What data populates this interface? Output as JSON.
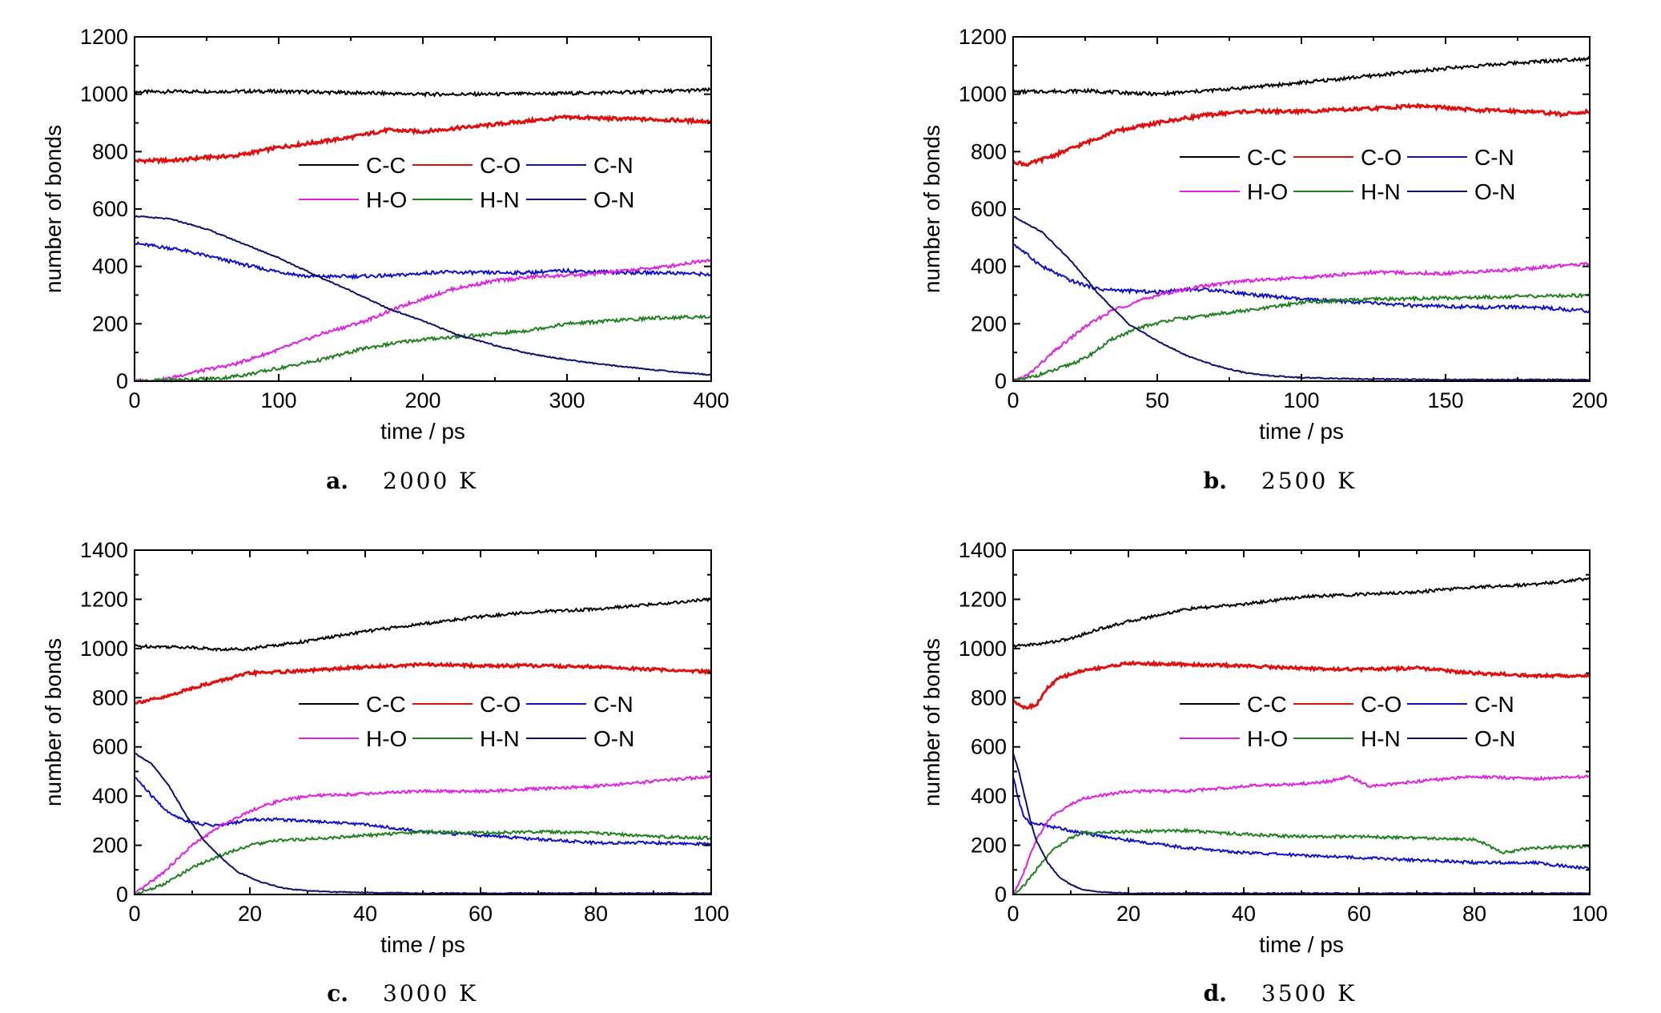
{
  "figure": {
    "panels": [
      {
        "letter": "a.",
        "temperature": "2000 K"
      },
      {
        "letter": "b.",
        "temperature": "2500 K"
      },
      {
        "letter": "c.",
        "temperature": "3000 K"
      },
      {
        "letter": "d.",
        "temperature": "3500 K"
      }
    ]
  },
  "chart_data": [
    {
      "type": "line",
      "xlabel": "time / ps",
      "ylabel": "number of bonds",
      "xlim": [
        0,
        400
      ],
      "ylim": [
        0,
        1200
      ],
      "xticks": [
        0,
        100,
        200,
        300,
        400
      ],
      "yticks": [
        0,
        200,
        400,
        600,
        800,
        1000,
        1200
      ],
      "legend": "center-right",
      "series": [
        {
          "name": "C-C",
          "color": "#000000",
          "x": [
            0,
            50,
            100,
            150,
            200,
            250,
            300,
            350,
            400
          ],
          "values": [
            1008,
            1010,
            1010,
            1005,
            1000,
            1000,
            1003,
            1008,
            1015
          ]
        },
        {
          "name": "C-O",
          "color": "#e01010",
          "x": [
            0,
            30,
            50,
            70,
            100,
            130,
            150,
            175,
            200,
            230,
            260,
            300,
            330,
            360,
            400
          ],
          "values": [
            768,
            770,
            780,
            785,
            815,
            835,
            850,
            875,
            870,
            885,
            900,
            920,
            915,
            912,
            905
          ]
        },
        {
          "name": "C-N",
          "color": "#1010cc",
          "x": [
            0,
            30,
            60,
            90,
            120,
            150,
            180,
            210,
            240,
            270,
            300,
            340,
            370,
            400
          ],
          "values": [
            480,
            460,
            425,
            390,
            365,
            365,
            368,
            380,
            378,
            378,
            385,
            378,
            378,
            372
          ]
        },
        {
          "name": "H-O",
          "color": "#e020e0",
          "x": [
            0,
            20,
            40,
            70,
            100,
            130,
            160,
            190,
            220,
            250,
            280,
            310,
            340,
            370,
            400
          ],
          "values": [
            0,
            5,
            30,
            60,
            110,
            165,
            210,
            270,
            320,
            350,
            365,
            370,
            385,
            400,
            425
          ]
        },
        {
          "name": "H-N",
          "color": "#208020",
          "x": [
            0,
            30,
            60,
            80,
            100,
            130,
            160,
            190,
            210,
            240,
            270,
            300,
            330,
            360,
            400
          ],
          "values": [
            0,
            5,
            10,
            25,
            45,
            75,
            115,
            140,
            150,
            160,
            175,
            200,
            210,
            220,
            225
          ]
        },
        {
          "name": "O-N",
          "color": "#10106a",
          "x": [
            0,
            25,
            50,
            75,
            100,
            125,
            150,
            175,
            200,
            225,
            250,
            275,
            300,
            325,
            350,
            375,
            400
          ],
          "values": [
            575,
            565,
            530,
            480,
            430,
            370,
            315,
            255,
            210,
            160,
            125,
            95,
            75,
            58,
            45,
            32,
            22
          ]
        }
      ]
    },
    {
      "type": "line",
      "xlabel": "time / ps",
      "ylabel": "number of bonds",
      "xlim": [
        0,
        200
      ],
      "ylim": [
        0,
        1200
      ],
      "xticks": [
        0,
        50,
        100,
        150,
        200
      ],
      "yticks": [
        0,
        200,
        400,
        600,
        800,
        1000,
        1200
      ],
      "legend": "center-right",
      "series": [
        {
          "name": "C-C",
          "color": "#000000",
          "x": [
            0,
            25,
            50,
            75,
            100,
            125,
            150,
            175,
            200
          ],
          "values": [
            1008,
            1012,
            1000,
            1018,
            1040,
            1065,
            1090,
            1110,
            1125
          ]
        },
        {
          "name": "C-O",
          "color": "#e01010",
          "x": [
            0,
            5,
            15,
            25,
            35,
            50,
            65,
            80,
            100,
            125,
            140,
            160,
            180,
            190,
            200
          ],
          "values": [
            765,
            755,
            790,
            830,
            870,
            900,
            925,
            940,
            940,
            950,
            960,
            945,
            940,
            930,
            940
          ]
        },
        {
          "name": "C-N",
          "color": "#1010cc",
          "x": [
            0,
            10,
            20,
            30,
            40,
            50,
            60,
            70,
            80,
            100,
            120,
            140,
            160,
            180,
            200
          ],
          "values": [
            480,
            400,
            350,
            320,
            315,
            310,
            320,
            318,
            305,
            285,
            275,
            262,
            258,
            258,
            245
          ]
        },
        {
          "name": "H-O",
          "color": "#e020e0",
          "x": [
            0,
            5,
            15,
            25,
            35,
            50,
            65,
            80,
            100,
            125,
            150,
            175,
            200
          ],
          "values": [
            0,
            20,
            110,
            190,
            250,
            300,
            330,
            350,
            360,
            380,
            375,
            390,
            410
          ]
        },
        {
          "name": "H-N",
          "color": "#208020",
          "x": [
            0,
            5,
            15,
            25,
            35,
            45,
            55,
            65,
            75,
            85,
            100,
            125,
            150,
            175,
            200
          ],
          "values": [
            0,
            10,
            40,
            80,
            150,
            190,
            215,
            225,
            240,
            250,
            275,
            285,
            290,
            295,
            300
          ]
        },
        {
          "name": "O-N",
          "color": "#10106a",
          "x": [
            0,
            10,
            20,
            30,
            40,
            50,
            60,
            70,
            80,
            90,
            100,
            120,
            150,
            175,
            200
          ],
          "values": [
            575,
            520,
            420,
            300,
            200,
            140,
            90,
            55,
            30,
            18,
            12,
            8,
            5,
            5,
            5
          ]
        }
      ]
    },
    {
      "type": "line",
      "xlabel": "time / ps",
      "ylabel": "number of bonds",
      "xlim": [
        0,
        100
      ],
      "ylim": [
        0,
        1400
      ],
      "xticks": [
        0,
        20,
        40,
        60,
        80,
        100
      ],
      "yticks": [
        0,
        200,
        400,
        600,
        800,
        1000,
        1200,
        1400
      ],
      "legend": "center-right",
      "series": [
        {
          "name": "C-C",
          "color": "#000000",
          "x": [
            0,
            10,
            15,
            20,
            30,
            40,
            50,
            60,
            70,
            80,
            90,
            100
          ],
          "values": [
            1010,
            1005,
            995,
            1000,
            1030,
            1070,
            1100,
            1130,
            1150,
            1160,
            1180,
            1200
          ]
        },
        {
          "name": "C-O",
          "color": "#e01010",
          "x": [
            0,
            5,
            10,
            15,
            20,
            25,
            30,
            40,
            50,
            60,
            70,
            80,
            90,
            100
          ],
          "values": [
            780,
            800,
            840,
            870,
            900,
            905,
            910,
            925,
            935,
            930,
            930,
            925,
            915,
            905
          ]
        },
        {
          "name": "C-N",
          "color": "#1010cc",
          "x": [
            0,
            3,
            6,
            9,
            12,
            15,
            20,
            25,
            30,
            40,
            50,
            60,
            70,
            80,
            90,
            100
          ],
          "values": [
            480,
            400,
            330,
            300,
            285,
            280,
            305,
            305,
            300,
            285,
            255,
            240,
            225,
            210,
            210,
            205
          ]
        },
        {
          "name": "H-O",
          "color": "#e020e0",
          "x": [
            0,
            5,
            10,
            15,
            20,
            25,
            30,
            40,
            50,
            60,
            70,
            80,
            90,
            100
          ],
          "values": [
            0,
            90,
            200,
            280,
            340,
            380,
            400,
            410,
            420,
            420,
            430,
            440,
            460,
            480
          ]
        },
        {
          "name": "H-N",
          "color": "#208020",
          "x": [
            0,
            5,
            10,
            15,
            20,
            25,
            30,
            40,
            50,
            60,
            70,
            80,
            90,
            100
          ],
          "values": [
            0,
            40,
            110,
            160,
            200,
            220,
            225,
            240,
            255,
            250,
            255,
            250,
            235,
            230
          ]
        },
        {
          "name": "O-N",
          "color": "#10106a",
          "x": [
            0,
            3,
            6,
            9,
            12,
            15,
            18,
            22,
            26,
            30,
            35,
            40,
            50,
            60,
            80,
            100
          ],
          "values": [
            575,
            530,
            440,
            320,
            220,
            150,
            90,
            50,
            25,
            15,
            10,
            8,
            5,
            5,
            5,
            5
          ]
        }
      ]
    },
    {
      "type": "line",
      "xlabel": "time / ps",
      "ylabel": "number of bonds",
      "xlim": [
        0,
        100
      ],
      "ylim": [
        0,
        1400
      ],
      "xticks": [
        0,
        20,
        40,
        60,
        80,
        100
      ],
      "yticks": [
        0,
        200,
        400,
        600,
        800,
        1000,
        1200,
        1400
      ],
      "legend": "center-right",
      "series": [
        {
          "name": "C-C",
          "color": "#000000",
          "x": [
            0,
            5,
            10,
            15,
            20,
            30,
            40,
            50,
            60,
            70,
            80,
            90,
            100
          ],
          "values": [
            1010,
            1020,
            1040,
            1080,
            1110,
            1160,
            1180,
            1210,
            1220,
            1230,
            1250,
            1260,
            1285
          ]
        },
        {
          "name": "C-O",
          "color": "#e01010",
          "x": [
            0,
            2,
            4,
            6,
            8,
            12,
            20,
            30,
            40,
            50,
            60,
            70,
            80,
            90,
            100
          ],
          "values": [
            790,
            760,
            770,
            840,
            880,
            910,
            940,
            935,
            930,
            920,
            915,
            920,
            900,
            890,
            890
          ]
        },
        {
          "name": "C-N",
          "color": "#1010cc",
          "x": [
            0,
            1,
            2,
            3,
            5,
            8,
            12,
            20,
            30,
            40,
            50,
            60,
            70,
            80,
            90,
            100
          ],
          "values": [
            480,
            380,
            310,
            290,
            285,
            270,
            250,
            220,
            190,
            170,
            160,
            150,
            140,
            130,
            130,
            105
          ]
        },
        {
          "name": "H-O",
          "color": "#e020e0",
          "x": [
            0,
            2,
            4,
            6,
            8,
            12,
            20,
            30,
            40,
            50,
            55,
            58,
            62,
            70,
            80,
            90,
            100
          ],
          "values": [
            0,
            100,
            220,
            300,
            340,
            390,
            420,
            420,
            440,
            450,
            460,
            480,
            440,
            460,
            480,
            470,
            480
          ]
        },
        {
          "name": "H-N",
          "color": "#208020",
          "x": [
            0,
            2,
            4,
            6,
            8,
            10,
            12,
            20,
            30,
            40,
            50,
            60,
            70,
            80,
            85,
            90,
            100
          ],
          "values": [
            0,
            40,
            100,
            160,
            200,
            230,
            250,
            255,
            260,
            245,
            235,
            235,
            230,
            225,
            170,
            190,
            195
          ]
        },
        {
          "name": "O-N",
          "color": "#10106a",
          "x": [
            0,
            1,
            2,
            3,
            4,
            6,
            8,
            10,
            12,
            15,
            20,
            30,
            50,
            80,
            100
          ],
          "values": [
            575,
            500,
            400,
            300,
            220,
            130,
            70,
            40,
            20,
            10,
            5,
            5,
            5,
            5,
            5
          ]
        }
      ]
    }
  ]
}
